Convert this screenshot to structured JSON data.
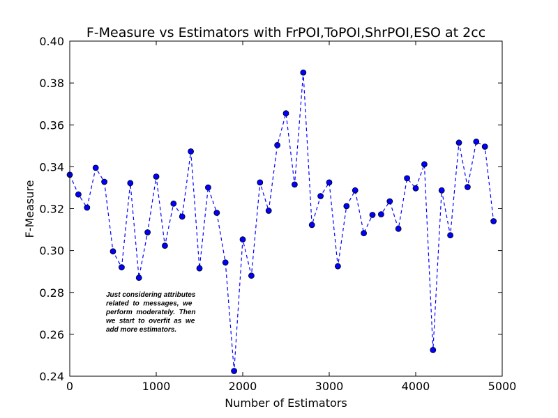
{
  "chart_data": {
    "type": "line",
    "title": "F-Measure vs Estimators with  FrPOI,ToPOI,ShrPOI,ESO at 2cc",
    "xlabel": "Number of Estimators",
    "ylabel": "F-Measure",
    "xlim": [
      0,
      5000
    ],
    "ylim": [
      0.24,
      0.4
    ],
    "xticks": [
      0,
      1000,
      2000,
      3000,
      4000,
      5000
    ],
    "xtick_labels": [
      "0",
      "1000",
      "2000",
      "3000",
      "4000",
      "5000"
    ],
    "yticks": [
      0.24,
      0.26,
      0.28,
      0.3,
      0.32,
      0.34,
      0.36,
      0.38,
      0.4
    ],
    "ytick_labels": [
      "0.24",
      "0.26",
      "0.28",
      "0.30",
      "0.32",
      "0.34",
      "0.36",
      "0.38",
      "0.40"
    ],
    "line_style": "dashed",
    "marker": "circle",
    "color": "#0000ff",
    "x": [
      0,
      100,
      200,
      300,
      400,
      500,
      600,
      700,
      800,
      900,
      1000,
      1100,
      1200,
      1300,
      1400,
      1500,
      1600,
      1700,
      1800,
      1900,
      2000,
      2100,
      2200,
      2300,
      2400,
      2500,
      2600,
      2700,
      2800,
      2900,
      3000,
      3100,
      3200,
      3300,
      3400,
      3500,
      3600,
      3700,
      3800,
      3900,
      4000,
      4100,
      4200,
      4300,
      4400,
      4500,
      4600,
      4700,
      4800,
      4900
    ],
    "y": [
      0.3362,
      0.3268,
      0.3205,
      0.3395,
      0.3328,
      0.2996,
      0.292,
      0.3322,
      0.287,
      0.3087,
      0.3353,
      0.3023,
      0.3224,
      0.3162,
      0.3473,
      0.2915,
      0.3301,
      0.318,
      0.2943,
      0.2425,
      0.3053,
      0.288,
      0.3325,
      0.319,
      0.3503,
      0.3655,
      0.3315,
      0.385,
      0.3122,
      0.326,
      0.3325,
      0.2925,
      0.3212,
      0.3287,
      0.3083,
      0.317,
      0.3173,
      0.3235,
      0.3104,
      0.3345,
      0.3297,
      0.3412,
      0.2525,
      0.3287,
      0.3073,
      0.3515,
      0.3303,
      0.352,
      0.3496,
      0.314
    ],
    "annotation": [
      "Just considering attributes",
      "related  to  messages,  we",
      "perform  moderately.  Then",
      "we  start  to  overfit  as  we",
      "add more estimators."
    ],
    "grid": false
  }
}
